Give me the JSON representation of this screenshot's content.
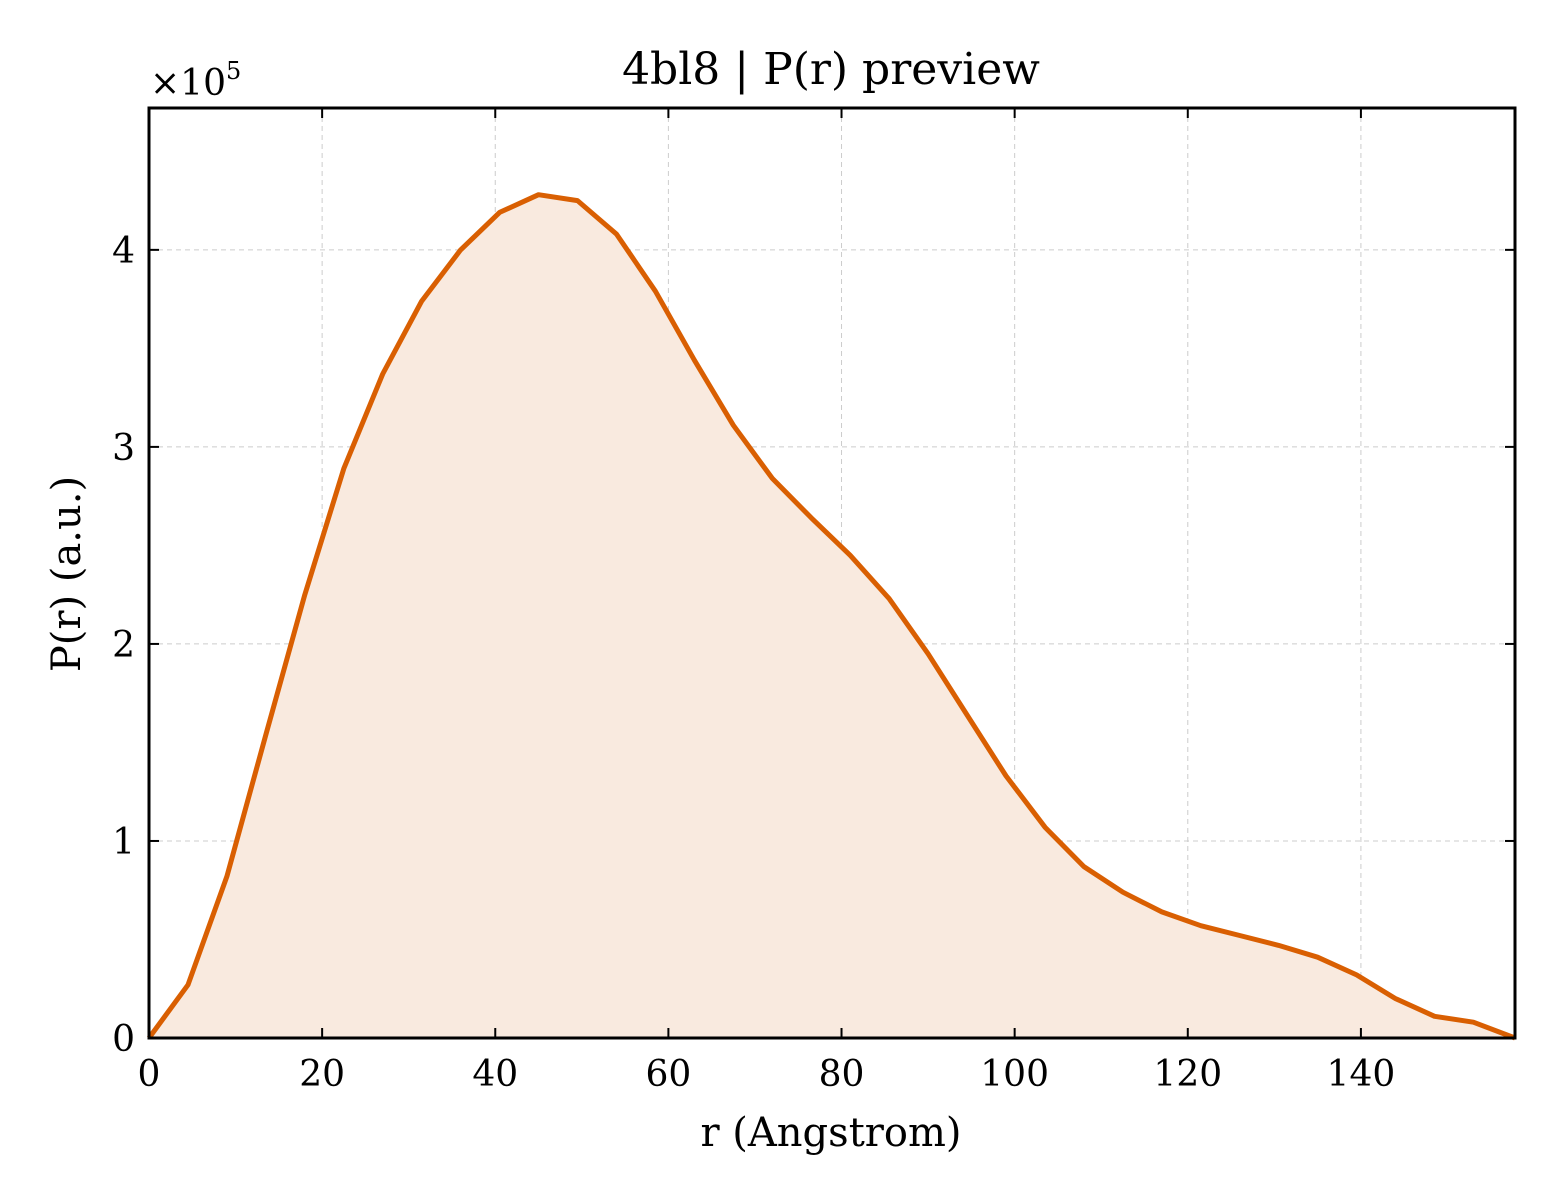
{
  "chart_data": {
    "type": "area",
    "title": "4bl8 | P(r) preview",
    "xlabel": "r (Angstrom)",
    "ylabel": "P(r) (a.u.)",
    "y_multiplier_base": "×10",
    "y_multiplier_exp": "5",
    "xlim": [
      0,
      157.8
    ],
    "ylim": [
      0,
      4.72
    ],
    "xticks": [
      0,
      20,
      40,
      60,
      80,
      100,
      120,
      140
    ],
    "xtick_labels": [
      "0",
      "20",
      "40",
      "60",
      "80",
      "100",
      "120",
      "140"
    ],
    "yticks": [
      0,
      1,
      2,
      3,
      4
    ],
    "ytick_labels": [
      "0",
      "1",
      "2",
      "3",
      "4"
    ],
    "grid": true,
    "line_color": "#d95f02",
    "fill_color": "#f9eadf",
    "series": [
      {
        "x": [
          0,
          4.5,
          9.0,
          13.5,
          18.0,
          22.5,
          27.0,
          31.5,
          36.0,
          40.5,
          45.0,
          49.5,
          54.0,
          58.5,
          63.0,
          67.5,
          72.0,
          76.5,
          81.0,
          85.5,
          90.0,
          94.5,
          99.0,
          103.5,
          108.0,
          112.5,
          117.0,
          121.5,
          126.0,
          130.5,
          135.0,
          139.5,
          144.0,
          148.5,
          153.0,
          157.8
        ],
        "values": [
          0.0,
          0.27,
          0.82,
          1.54,
          2.25,
          2.89,
          3.37,
          3.74,
          4.0,
          4.19,
          4.28,
          4.25,
          4.08,
          3.79,
          3.44,
          3.11,
          2.84,
          2.64,
          2.45,
          2.23,
          1.95,
          1.64,
          1.33,
          1.07,
          0.87,
          0.74,
          0.64,
          0.57,
          0.52,
          0.47,
          0.41,
          0.32,
          0.2,
          0.11,
          0.08,
          0.0
        ]
      }
    ]
  }
}
